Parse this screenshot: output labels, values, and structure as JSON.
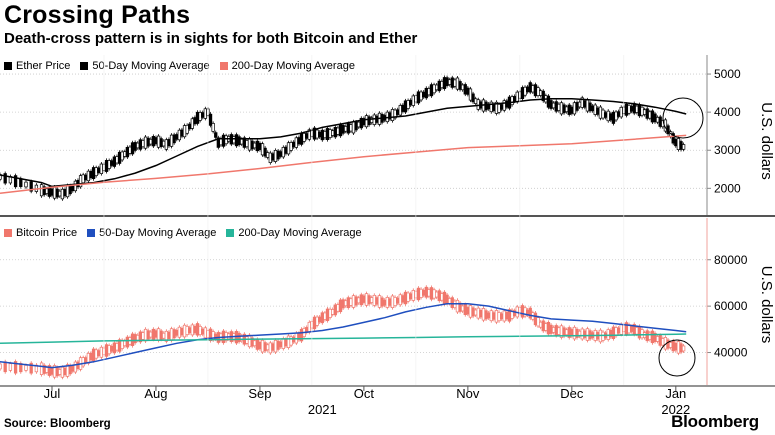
{
  "header": {
    "title": "Crossing Paths",
    "subtitle": "Death-cross pattern is in sights for both Bitcoin and Ether"
  },
  "footer": {
    "source": "Source: Bloomberg",
    "brand": "Bloomberg"
  },
  "colors": {
    "price_black": "#000000",
    "ma200_top": "#f0776c",
    "ma50_bottom": "#1f4fbf",
    "ma200_bottom": "#26b59a",
    "bitcoin_price": "#f0776c",
    "grid": "#c8c8c8",
    "divider": "#555555"
  },
  "chart_data": [
    {
      "type": "line",
      "panel": "top",
      "legend": [
        {
          "label": "Ether Price",
          "color": "#000000"
        },
        {
          "label": "50-Day Moving Average",
          "color": "#000000"
        },
        {
          "label": "200-Day Moving Average",
          "color": "#f0776c"
        }
      ],
      "ylabel": "U.S. dollars",
      "yticks": [
        2000,
        3000,
        4000,
        5000
      ],
      "ytick_labels": [
        "2000",
        "3000",
        "4000",
        "5000"
      ],
      "ylim": [
        1300,
        5500
      ],
      "x_month_index_range": [
        -0.5,
        6.3
      ],
      "series": [
        {
          "name": "Ether Price",
          "style": "candles",
          "x": [
            -0.5,
            -0.3,
            -0.1,
            0.0,
            0.1,
            0.2,
            0.3,
            0.4,
            0.5,
            0.6,
            0.7,
            0.8,
            0.9,
            1.0,
            1.1,
            1.2,
            1.3,
            1.4,
            1.5,
            1.6,
            1.7,
            1.8,
            1.9,
            2.0,
            2.1,
            2.2,
            2.3,
            2.4,
            2.5,
            2.6,
            2.7,
            2.8,
            2.9,
            3.0,
            3.1,
            3.2,
            3.3,
            3.4,
            3.5,
            3.6,
            3.7,
            3.8,
            3.9,
            4.0,
            4.1,
            4.2,
            4.3,
            4.4,
            4.5,
            4.6,
            4.7,
            4.8,
            4.9,
            5.0,
            5.1,
            5.2,
            5.3,
            5.4,
            5.5,
            5.6,
            5.7,
            5.8,
            5.9,
            6.0,
            6.1
          ],
          "values": [
            2300,
            2150,
            1950,
            1900,
            1850,
            2000,
            2250,
            2400,
            2550,
            2700,
            2900,
            3100,
            3200,
            3250,
            3150,
            3350,
            3550,
            3850,
            4000,
            3200,
            3300,
            3250,
            3150,
            3100,
            2800,
            2900,
            3100,
            3300,
            3450,
            3400,
            3450,
            3550,
            3600,
            3750,
            3800,
            3850,
            3950,
            4150,
            4350,
            4500,
            4650,
            4800,
            4750,
            4550,
            4200,
            4150,
            4100,
            4250,
            4450,
            4650,
            4500,
            4200,
            4100,
            4050,
            4250,
            4100,
            3950,
            3850,
            4050,
            4100,
            4000,
            3850,
            3650,
            3200,
            3050
          ]
        },
        {
          "name": "50-Day Moving Average",
          "x": [
            -0.5,
            -0.3,
            -0.1,
            0.0,
            0.2,
            0.4,
            0.6,
            0.8,
            1.0,
            1.2,
            1.4,
            1.6,
            1.8,
            2.0,
            2.2,
            2.4,
            2.6,
            2.8,
            3.0,
            3.2,
            3.4,
            3.6,
            3.8,
            4.0,
            4.2,
            4.4,
            4.6,
            4.8,
            5.0,
            5.2,
            5.4,
            5.6,
            5.8,
            6.0,
            6.1
          ],
          "values": [
            2350,
            2250,
            2150,
            2050,
            2100,
            2150,
            2250,
            2400,
            2600,
            2850,
            3100,
            3300,
            3300,
            3300,
            3350,
            3450,
            3600,
            3700,
            3800,
            3850,
            3900,
            4000,
            4100,
            4150,
            4200,
            4250,
            4320,
            4350,
            4350,
            4320,
            4280,
            4220,
            4130,
            4020,
            3950
          ]
        },
        {
          "name": "200-Day Moving Average",
          "x": [
            -0.5,
            0.0,
            0.5,
            1.0,
            1.5,
            2.0,
            2.5,
            3.0,
            3.5,
            4.0,
            4.5,
            5.0,
            5.5,
            6.0,
            6.1
          ],
          "values": [
            1870,
            2030,
            2160,
            2260,
            2380,
            2520,
            2680,
            2830,
            2950,
            3070,
            3120,
            3170,
            3270,
            3370,
            3390
          ]
        }
      ]
    },
    {
      "type": "line",
      "panel": "bottom",
      "legend": [
        {
          "label": "Bitcoin Price",
          "color": "#f0776c"
        },
        {
          "label": "50-Day Moving Average",
          "color": "#1f4fbf"
        },
        {
          "label": "200-Day Moving Average",
          "color": "#26b59a"
        }
      ],
      "ylabel": "U.S. dollars",
      "yticks": [
        40000,
        60000,
        80000
      ],
      "ytick_labels": [
        "40000",
        "60000",
        "80000"
      ],
      "ylim": [
        26000,
        98000
      ],
      "x_month_index_range": [
        -0.5,
        6.3
      ],
      "series": [
        {
          "name": "Bitcoin Price",
          "style": "candles",
          "x": [
            -0.5,
            -0.3,
            -0.1,
            0.0,
            0.1,
            0.2,
            0.3,
            0.4,
            0.5,
            0.6,
            0.7,
            0.8,
            0.9,
            1.0,
            1.1,
            1.2,
            1.3,
            1.4,
            1.5,
            1.6,
            1.7,
            1.8,
            1.9,
            2.0,
            2.1,
            2.2,
            2.3,
            2.4,
            2.5,
            2.6,
            2.7,
            2.8,
            2.9,
            3.0,
            3.1,
            3.2,
            3.3,
            3.4,
            3.5,
            3.6,
            3.7,
            3.8,
            3.9,
            4.0,
            4.1,
            4.2,
            4.3,
            4.4,
            4.5,
            4.6,
            4.7,
            4.8,
            4.9,
            5.0,
            5.1,
            5.2,
            5.3,
            5.4,
            5.5,
            5.6,
            5.7,
            5.8,
            5.9,
            6.0,
            6.1
          ],
          "values": [
            34000,
            33500,
            33000,
            32000,
            31500,
            33000,
            36000,
            39000,
            40500,
            42000,
            44000,
            46000,
            47500,
            48000,
            47000,
            48500,
            49500,
            50000,
            48000,
            46500,
            47000,
            46500,
            45000,
            43000,
            42000,
            43500,
            45000,
            47500,
            52000,
            55000,
            57500,
            61000,
            62000,
            63000,
            62500,
            61500,
            62000,
            63500,
            65000,
            66000,
            65000,
            63000,
            60000,
            58000,
            57000,
            56000,
            55500,
            56000,
            58000,
            57000,
            52000,
            50000,
            49000,
            48500,
            48000,
            47500,
            47000,
            48500,
            50500,
            50000,
            47500,
            46500,
            44000,
            42500,
            41500
          ]
        },
        {
          "name": "50-Day Moving Average",
          "x": [
            -0.5,
            -0.3,
            -0.1,
            0.0,
            0.2,
            0.4,
            0.6,
            0.8,
            1.0,
            1.2,
            1.4,
            1.6,
            1.8,
            2.0,
            2.2,
            2.4,
            2.6,
            2.8,
            3.0,
            3.2,
            3.4,
            3.6,
            3.8,
            4.0,
            4.2,
            4.4,
            4.6,
            4.8,
            5.0,
            5.2,
            5.4,
            5.6,
            5.8,
            6.0,
            6.1
          ],
          "values": [
            36000,
            35000,
            34000,
            33500,
            34500,
            36000,
            38000,
            40000,
            42000,
            44000,
            45500,
            46500,
            47000,
            47500,
            48000,
            48500,
            49500,
            51000,
            53000,
            55000,
            57500,
            59500,
            61000,
            61000,
            60000,
            58000,
            56000,
            54500,
            54000,
            53500,
            52500,
            51500,
            50500,
            49500,
            49000
          ]
        },
        {
          "name": "200-Day Moving Average",
          "x": [
            -0.5,
            0.0,
            0.5,
            1.0,
            1.5,
            2.0,
            2.5,
            3.0,
            3.5,
            4.0,
            4.5,
            5.0,
            5.5,
            6.0,
            6.1
          ],
          "values": [
            44000,
            44500,
            45000,
            45300,
            45500,
            45800,
            46000,
            46200,
            46500,
            46800,
            47000,
            47200,
            47500,
            47900,
            48000
          ]
        }
      ]
    },
    {
      "type": "axis",
      "panel": "shared-x",
      "month_labels": [
        "Jul",
        "Aug",
        "Sep",
        "Oct",
        "Nov",
        "Dec",
        "Jan"
      ],
      "month_index": [
        0,
        1,
        2,
        3,
        4,
        5,
        6
      ],
      "year_labels": [
        {
          "label": "2021",
          "month_index": 2.6
        },
        {
          "label": "2022",
          "month_index": 6.0
        }
      ]
    }
  ]
}
